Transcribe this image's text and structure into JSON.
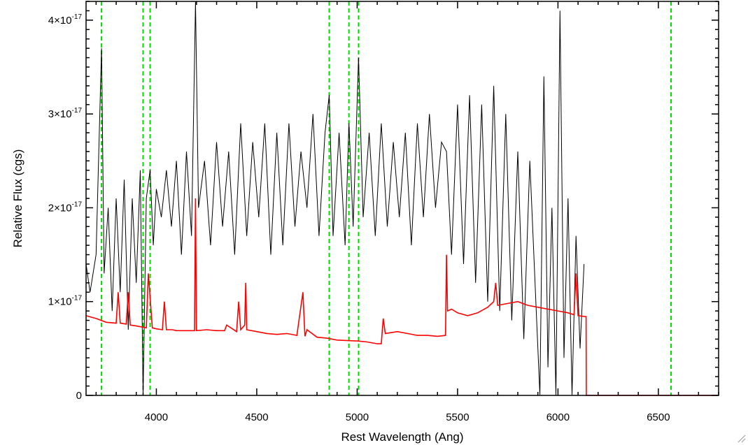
{
  "chart_data": {
    "type": "line",
    "xlabel": "Rest Wavelength (Ang)",
    "ylabel": "Relative Flux (cgs)",
    "xlim": [
      3650,
      6800
    ],
    "ylim": [
      0,
      4.2e-17
    ],
    "x_ticks": [
      {
        "value": 4000,
        "label": "4000"
      },
      {
        "value": 4500,
        "label": "4500"
      },
      {
        "value": 5000,
        "label": "5000"
      },
      {
        "value": 5500,
        "label": "5500"
      },
      {
        "value": 6000,
        "label": "6000"
      },
      {
        "value": 6500,
        "label": "6500"
      }
    ],
    "y_ticks": [
      {
        "value": 0,
        "mantissa": "0",
        "exponent": ""
      },
      {
        "value": 1e-17,
        "mantissa": "1×10",
        "exponent": "-17"
      },
      {
        "value": 2e-17,
        "mantissa": "2×10",
        "exponent": "-17"
      },
      {
        "value": 3e-17,
        "mantissa": "3×10",
        "exponent": "-17"
      },
      {
        "value": 4e-17,
        "mantissa": "4×10",
        "exponent": "-17"
      }
    ],
    "grid": false,
    "series": [
      {
        "color": "#000000",
        "style": "solid",
        "x": [
          3650,
          3670,
          3700,
          3727,
          3740,
          3760,
          3780,
          3800,
          3820,
          3840,
          3860,
          3880,
          3900,
          3920,
          3934,
          3950,
          3969,
          3985,
          4000,
          4025,
          4050,
          4075,
          4100,
          4125,
          4150,
          4175,
          4195,
          4210,
          4240,
          4270,
          4300,
          4330,
          4360,
          4390,
          4420,
          4450,
          4480,
          4510,
          4540,
          4570,
          4600,
          4630,
          4660,
          4690,
          4720,
          4750,
          4780,
          4810,
          4840,
          4861,
          4880,
          4910,
          4940,
          4959,
          4980,
          5007,
          5030,
          5060,
          5090,
          5120,
          5150,
          5180,
          5210,
          5240,
          5270,
          5300,
          5330,
          5360,
          5390,
          5420,
          5445,
          5470,
          5500,
          5530,
          5560,
          5590,
          5620,
          5650,
          5680,
          5710,
          5740,
          5770,
          5800,
          5830,
          5860,
          5890,
          5910,
          5930,
          5950,
          5970,
          5990,
          6010,
          6030,
          6050,
          6070,
          6090,
          6110,
          6130
        ],
        "y": [
          1.4e-17,
          1.1e-17,
          1.5e-17,
          3.7e-17,
          1.3e-17,
          2e-17,
          9e-18,
          2.1e-17,
          1.1e-17,
          2.3e-17,
          7e-18,
          2.1e-17,
          1.2e-17,
          2.4e-17,
          0.0,
          2.1e-17,
          2.4e-17,
          1.6e-17,
          2.2e-17,
          1.9e-17,
          2.4e-17,
          1.8e-17,
          2.5e-17,
          1.5e-17,
          2.6e-17,
          1.7e-17,
          4.2e-17,
          2e-17,
          2.5e-17,
          1.6e-17,
          2.7e-17,
          1.8e-17,
          2.6e-17,
          1.5e-17,
          2.9e-17,
          1.7e-17,
          2.7e-17,
          1.9e-17,
          2.9e-17,
          1.5e-17,
          2.8e-17,
          1.6e-17,
          2.9e-17,
          1.8e-17,
          2.6e-17,
          2e-17,
          3e-17,
          1.7e-17,
          2.8e-17,
          3.2e-17,
          1.7e-17,
          2.8e-17,
          1.6e-17,
          2.9e-17,
          1.8e-17,
          3.6e-17,
          1.9e-17,
          2.8e-17,
          1.7e-17,
          2.9e-17,
          1.8e-17,
          2.7e-17,
          1.9e-17,
          2.8e-17,
          1.6e-17,
          2.9e-17,
          1.9e-17,
          3e-17,
          2e-17,
          2.7e-17,
          2.6e-17,
          1.5e-17,
          3.1e-17,
          1.4e-17,
          3.2e-17,
          1.2e-17,
          3.1e-17,
          1e-17,
          3.3e-17,
          9e-18,
          3e-17,
          8e-18,
          2.6e-17,
          6e-18,
          2.5e-17,
          1e-17,
          0.0,
          3.4e-17,
          3e-18,
          2e-17,
          0.0,
          4.1e-17,
          4e-18,
          2.1e-17,
          0.0,
          1.7e-17,
          5e-18,
          1.4e-17
        ]
      },
      {
        "color": "#ff0000",
        "style": "solid",
        "x": [
          3650,
          3700,
          3750,
          3800,
          3810,
          3820,
          3850,
          3860,
          3870,
          3900,
          3950,
          3960,
          3980,
          4000,
          4030,
          4040,
          4050,
          4080,
          4100,
          4150,
          4190,
          4195,
          4200,
          4250,
          4300,
          4340,
          4350,
          4400,
          4410,
          4420,
          4440,
          4445,
          4450,
          4500,
          4550,
          4600,
          4650,
          4700,
          4730,
          4740,
          4750,
          4800,
          4850,
          4900,
          5000,
          5050,
          5100,
          5120,
          5130,
          5140,
          5200,
          5250,
          5300,
          5350,
          5400,
          5440,
          5445,
          5450,
          5470,
          5500,
          5550,
          5600,
          5650,
          5680,
          5690,
          5700,
          5750,
          5800,
          5850,
          5900,
          5950,
          6000,
          6050,
          6080,
          6090,
          6100,
          6140,
          6141,
          6200,
          6400,
          6800
        ],
        "y": [
          8.5e-18,
          8.2e-18,
          7.8e-18,
          7.7e-18,
          1.1e-17,
          7.7e-18,
          7.6e-18,
          1.1e-17,
          7.5e-18,
          7.4e-18,
          7.2e-18,
          1.3e-17,
          7.2e-18,
          7.1e-18,
          7e-18,
          1e-17,
          7e-18,
          7e-18,
          6.9e-18,
          6.9e-18,
          6.9e-18,
          2.1e-17,
          6.9e-18,
          7e-18,
          6.9e-18,
          6.9e-18,
          7.5e-18,
          6.8e-18,
          1e-17,
          7e-18,
          7.5e-18,
          1.2e-17,
          7e-18,
          6.8e-18,
          6.6e-18,
          6.5e-18,
          6.6e-18,
          6.4e-18,
          1.1e-17,
          6.3e-18,
          7e-18,
          6.2e-18,
          6.1e-18,
          5.9e-18,
          5.8e-18,
          5.7e-18,
          5.5e-18,
          5.5e-18,
          8.2e-18,
          6.6e-18,
          6.8e-18,
          6.6e-18,
          6.4e-18,
          6.4e-18,
          6.3e-18,
          6.4e-18,
          1.5e-17,
          9e-18,
          9.2e-18,
          8.8e-18,
          8.5e-18,
          8.8e-18,
          9.4e-18,
          1e-17,
          1.2e-17,
          9.6e-18,
          9.8e-18,
          1e-17,
          9.6e-18,
          9.4e-18,
          9.2e-18,
          9e-18,
          8.8e-18,
          8.6e-18,
          1.3e-17,
          8.5e-18,
          8.4e-18,
          0.0,
          0.0,
          0.0,
          0.0
        ]
      }
    ],
    "vlines": {
      "color": "#00dd00",
      "style": "dashed",
      "x": [
        3727,
        3934,
        3969,
        4861,
        4959,
        5007,
        6563
      ]
    }
  }
}
